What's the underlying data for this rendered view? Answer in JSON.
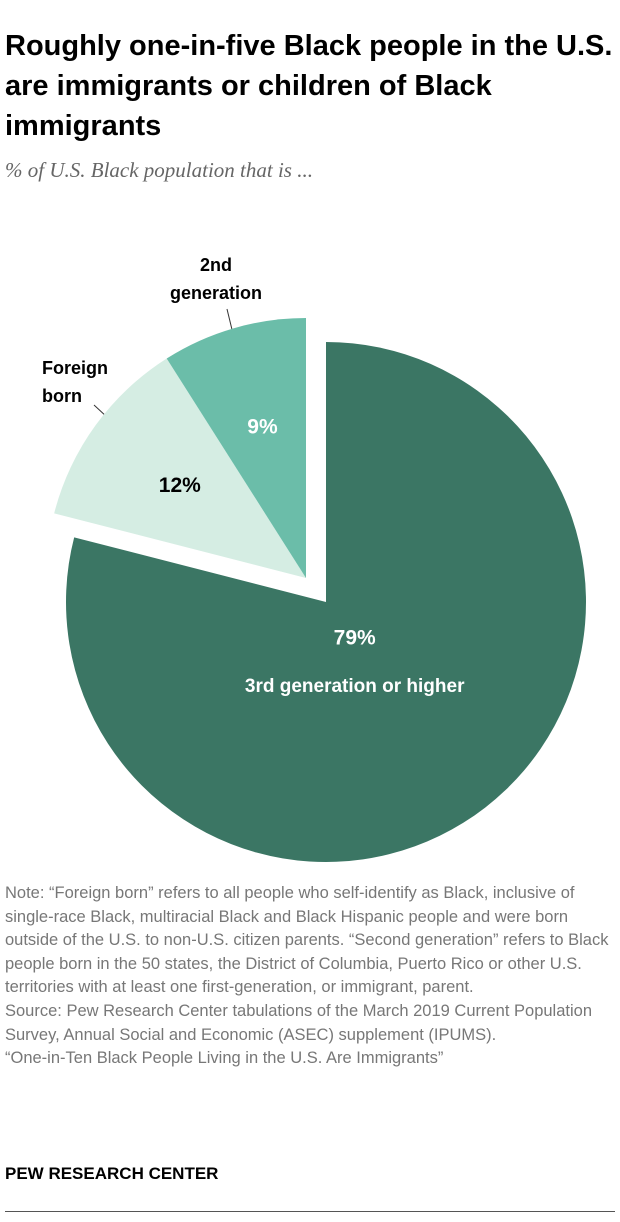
{
  "chart_data": {
    "type": "pie",
    "title": "Roughly one-in-five Black people in the U.S. are immigrants or children of Black immigrants",
    "subtitle": "% of U.S. Black population that is ...",
    "categories": [
      "3rd generation or higher",
      "Foreign born",
      "2nd generation"
    ],
    "values": [
      79,
      12,
      9
    ],
    "value_labels": [
      "79%",
      "12%",
      "9%"
    ],
    "colors": [
      "#3b7664",
      "#d5ede3",
      "#6bbda9"
    ],
    "note": "Note: “Foreign born” refers to all people who self-identify as Black, inclusive of single-race Black, multiracial Black and Black Hispanic people and were born outside of the U.S. to non-U.S. citizen parents. “Second generation” refers to Black people born in the 50 states, the District of Columbia, Puerto Rico or other U.S. territories with at least one first-generation, or immigrant, parent.",
    "source": "Source: Pew Research Center tabulations of the March 2019 Current Population Survey, Annual Social and Economic (ASEC) supplement (IPUMS).",
    "report": "“One-in-Ten Black People Living in the U.S. Are Immigrants”",
    "footer": "PEW RESEARCH CENTER"
  }
}
